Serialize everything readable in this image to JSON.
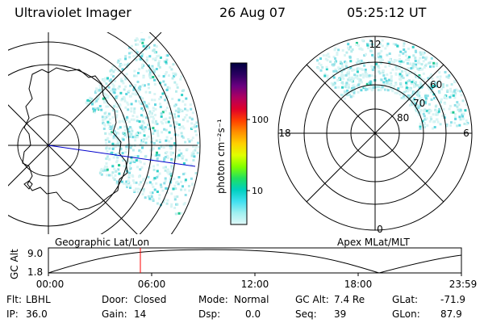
{
  "header": {
    "instrument": "Ultraviolet Imager",
    "date": "26 Aug 07",
    "time": "05:25:12 UT"
  },
  "colorbar": {
    "label": "photon cm⁻²s⁻¹",
    "ticks": [
      "100",
      "10"
    ],
    "colors": [
      "#000040",
      "#2a0060",
      "#6a0080",
      "#b00060",
      "#e0002a",
      "#ff4000",
      "#ff9000",
      "#ffd000",
      "#e0ff00",
      "#80ff00",
      "#20e060",
      "#00d0c0",
      "#40e0f0",
      "#a0f0f0",
      "#e0f8f8"
    ]
  },
  "left_panel": {
    "label": "Geographic Lat/Lon",
    "aurora_color": "#30d0e0"
  },
  "right_panel": {
    "label": "Apex MLat/MLT",
    "mlt_labels": {
      "top": "12",
      "left": "18",
      "right": "6",
      "bottom": "0"
    },
    "lat_labels": [
      "80",
      "70",
      "60"
    ],
    "aurora_color": "#30d0e0"
  },
  "altitude_plot": {
    "ylabel": "GC Alt",
    "yticks": [
      "9.0",
      "1.8"
    ],
    "xticks": [
      "00:00",
      "06:00",
      "12:00",
      "18:00",
      "23:59"
    ],
    "marker_color": "#ff0000"
  },
  "footer": {
    "row1": [
      {
        "label": "Flt:",
        "value": "LBHL"
      },
      {
        "label": "Door:",
        "value": "Closed"
      },
      {
        "label": "Mode:",
        "value": "Normal"
      },
      {
        "label": "GC Alt:",
        "value": "7.4 Re"
      },
      {
        "label": "GLat:",
        "value": "-71.9"
      }
    ],
    "row2": [
      {
        "label": "IP:",
        "value": "36.0"
      },
      {
        "label": "Gain:",
        "value": "14"
      },
      {
        "label": "Dsp:",
        "value": "0.0"
      },
      {
        "label": "Seq:",
        "value": "39"
      },
      {
        "label": "GLon:",
        "value": "87.9"
      }
    ]
  }
}
